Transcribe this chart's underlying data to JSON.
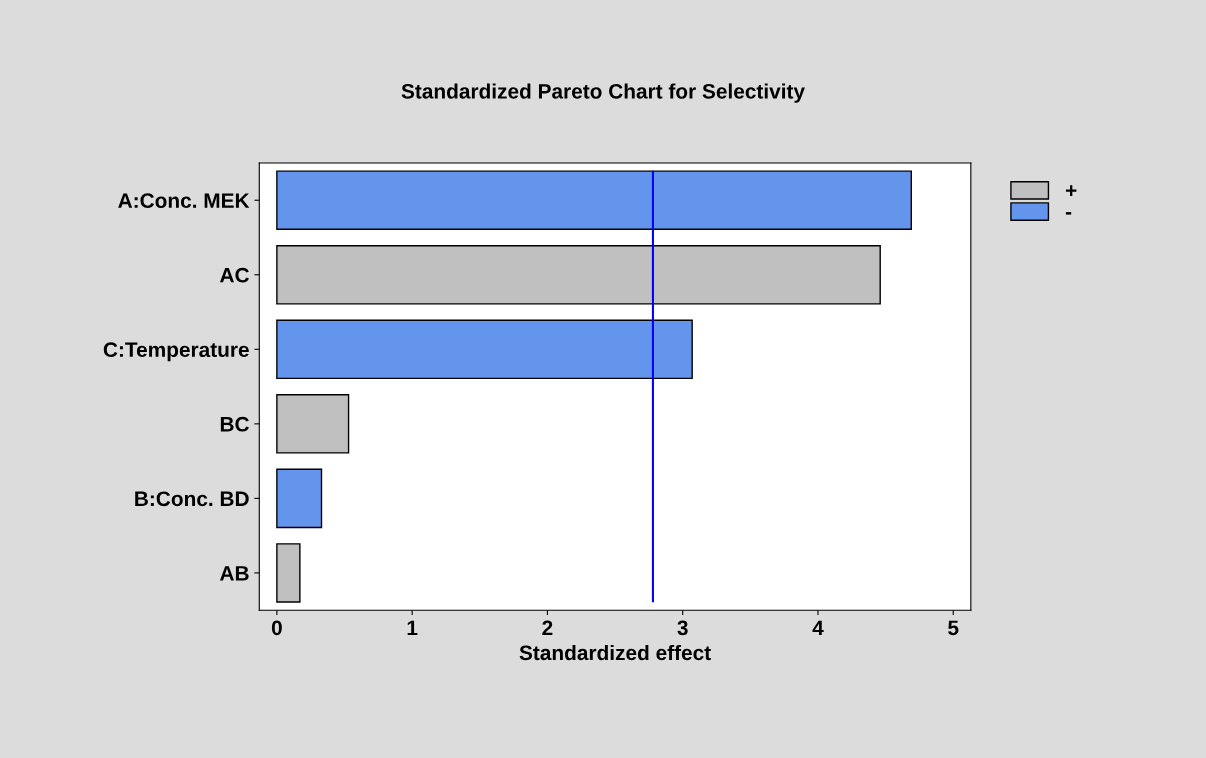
{
  "chart_data": {
    "type": "bar",
    "orientation": "horizontal",
    "title": "Standardized Pareto Chart for Selectivity",
    "xlabel": "Standardized effect",
    "categories": [
      "A:Conc. MEK",
      "AC",
      "C:Temperature",
      "BC",
      "B:Conc. BD",
      "AB"
    ],
    "series": [
      {
        "name": "+",
        "color": "#c0c0c0",
        "values": [
          null,
          4.46,
          null,
          0.53,
          null,
          0.17
        ]
      },
      {
        "name": "-",
        "color": "#6495ed",
        "values": [
          4.69,
          null,
          3.07,
          null,
          0.33,
          null
        ]
      }
    ],
    "xlim": [
      -0.13,
      5.13
    ],
    "xticks": [
      0,
      1,
      2,
      3,
      4,
      5
    ],
    "grid": false,
    "legend": "top right",
    "ref_lines": [
      {
        "axis": "x",
        "value": 2.78,
        "color": "#0000ff"
      }
    ]
  }
}
